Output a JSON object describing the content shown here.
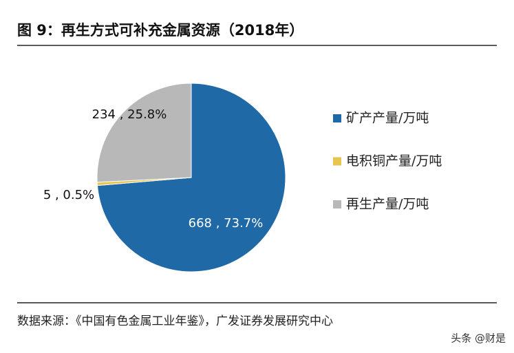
{
  "chart_data": {
    "type": "pie",
    "title": "图 9：再生方式可补充金属资源（2018年）",
    "categories": [
      "矿产产量/万吨",
      "电积铜产量/万吨",
      "再生产量/万吨"
    ],
    "values": [
      668,
      5,
      234
    ],
    "value_labels": [
      "668 , 73.7%",
      "5 , 0.5%",
      "234 , 25.8%"
    ],
    "colors": [
      "#1f69a7",
      "#e6c550",
      "#b8b8b8"
    ],
    "legend": "right",
    "source": "数据来源：《中国有色金属工业年鉴》，广发证券发展研究中心",
    "watermark": "头条 @财是"
  }
}
